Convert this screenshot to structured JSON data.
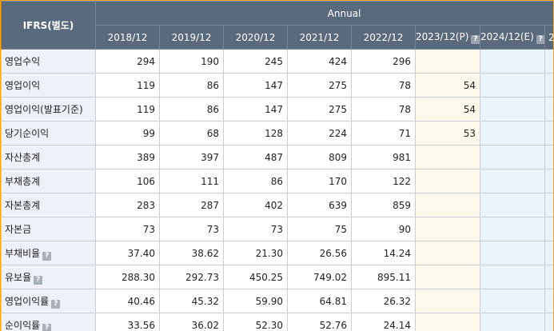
{
  "header": {
    "ifrs_label": "IFRS(별도)",
    "group_label": "Annual",
    "years": [
      "2018/12",
      "2019/12",
      "2020/12",
      "2021/12",
      "2022/12",
      "2023/12(P)",
      "2024/12(E)",
      "2"
    ]
  },
  "help_icon_glyph": "?",
  "rows": [
    {
      "label": "영업수익",
      "values": [
        "294",
        "190",
        "245",
        "424",
        "296",
        "",
        "",
        ""
      ]
    },
    {
      "label": "영업이익",
      "values": [
        "119",
        "86",
        "147",
        "275",
        "78",
        "54",
        "",
        ""
      ]
    },
    {
      "label": "영업이익(발표기준)",
      "values": [
        "119",
        "86",
        "147",
        "275",
        "78",
        "54",
        "",
        ""
      ]
    },
    {
      "label": "당기순이익",
      "values": [
        "99",
        "68",
        "128",
        "224",
        "71",
        "53",
        "",
        ""
      ]
    },
    {
      "label": "자산총계",
      "values": [
        "389",
        "397",
        "487",
        "809",
        "981",
        "",
        "",
        ""
      ]
    },
    {
      "label": "부채총계",
      "values": [
        "106",
        "111",
        "86",
        "170",
        "122",
        "",
        "",
        ""
      ]
    },
    {
      "label": "자본총계",
      "values": [
        "283",
        "287",
        "402",
        "639",
        "859",
        "",
        "",
        ""
      ]
    },
    {
      "label": "자본금",
      "values": [
        "73",
        "73",
        "73",
        "75",
        "90",
        "",
        "",
        ""
      ]
    },
    {
      "label": "부채비율",
      "values": [
        "37.40",
        "38.62",
        "21.30",
        "26.56",
        "14.24",
        "",
        "",
        ""
      ]
    },
    {
      "label": "유보율",
      "values": [
        "288.30",
        "292.73",
        "450.25",
        "749.02",
        "895.11",
        "",
        "",
        ""
      ]
    },
    {
      "label": "영업이익률",
      "values": [
        "40.46",
        "45.32",
        "59.90",
        "64.81",
        "26.32",
        "",
        "",
        ""
      ]
    },
    {
      "label": "순이익률",
      "values": [
        "33.56",
        "36.02",
        "52.30",
        "52.76",
        "24.14",
        "",
        "",
        ""
      ]
    }
  ],
  "colors": {
    "border_accent": "#f5a623",
    "header_bg": "#5a6a7d",
    "label_bg": "#eef2f8",
    "estimate_p_bg": "#fdf8ea",
    "estimate_e_bg": "#e8f3fb"
  }
}
